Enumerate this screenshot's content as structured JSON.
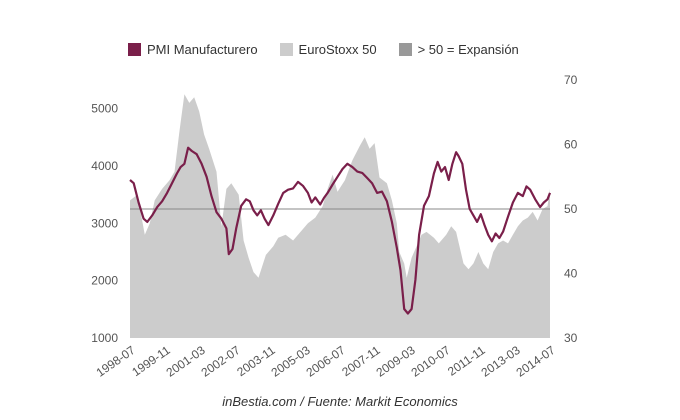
{
  "legend": {
    "pmi_label": "PMI Manufacturero",
    "stoxx_label": "EuroStoxx 50",
    "threshold_label": "> 50 = Expansión"
  },
  "source": "inBestia.com / Fuente: Markit Economics",
  "colors": {
    "pmi": "#7a1f4a",
    "stoxx": "#cccccc",
    "threshold": "#999999",
    "threshold_line": "#888888"
  },
  "chart_data": {
    "type": "area",
    "title": "",
    "legend_position": "top",
    "x_ticks": [
      "1998-07",
      "1999-11",
      "2001-03",
      "2002-07",
      "2003-11",
      "2005-03",
      "2006-07",
      "2007-11",
      "2009-03",
      "2010-07",
      "2011-11",
      "2013-03",
      "2014-07"
    ],
    "x_range": [
      1998.0,
      2015.0
    ],
    "y_left": {
      "label": "",
      "range": [
        1000,
        5500
      ],
      "ticks": [
        1000,
        2000,
        3000,
        4000,
        5000
      ]
    },
    "y_right": {
      "label": "",
      "range": [
        30,
        70
      ],
      "ticks": [
        30,
        40,
        50,
        60,
        70
      ]
    },
    "threshold": 50,
    "series": [
      {
        "name": "EuroStoxx 50",
        "axis": "left",
        "kind": "area",
        "points": [
          [
            1998.0,
            3400
          ],
          [
            1998.3,
            3500
          ],
          [
            1998.6,
            2800
          ],
          [
            1998.8,
            3000
          ],
          [
            1999.0,
            3400
          ],
          [
            1999.3,
            3600
          ],
          [
            1999.6,
            3750
          ],
          [
            1999.8,
            3900
          ],
          [
            2000.0,
            4600
          ],
          [
            2000.2,
            5250
          ],
          [
            2000.4,
            5100
          ],
          [
            2000.6,
            5200
          ],
          [
            2000.8,
            4950
          ],
          [
            2001.0,
            4550
          ],
          [
            2001.2,
            4300
          ],
          [
            2001.5,
            3900
          ],
          [
            2001.7,
            2950
          ],
          [
            2001.9,
            3600
          ],
          [
            2002.1,
            3700
          ],
          [
            2002.4,
            3500
          ],
          [
            2002.6,
            2700
          ],
          [
            2002.8,
            2400
          ],
          [
            2003.0,
            2150
          ],
          [
            2003.2,
            2050
          ],
          [
            2003.5,
            2450
          ],
          [
            2003.8,
            2600
          ],
          [
            2004.0,
            2750
          ],
          [
            2004.3,
            2800
          ],
          [
            2004.6,
            2700
          ],
          [
            2004.9,
            2850
          ],
          [
            2005.2,
            3000
          ],
          [
            2005.5,
            3100
          ],
          [
            2005.8,
            3300
          ],
          [
            2006.0,
            3600
          ],
          [
            2006.2,
            3850
          ],
          [
            2006.4,
            3550
          ],
          [
            2006.7,
            3750
          ],
          [
            2007.0,
            4100
          ],
          [
            2007.3,
            4350
          ],
          [
            2007.5,
            4500
          ],
          [
            2007.7,
            4300
          ],
          [
            2007.9,
            4400
          ],
          [
            2008.1,
            3800
          ],
          [
            2008.4,
            3700
          ],
          [
            2008.6,
            3400
          ],
          [
            2008.8,
            3000
          ],
          [
            2008.9,
            2500
          ],
          [
            2009.1,
            2300
          ],
          [
            2009.2,
            2050
          ],
          [
            2009.4,
            2400
          ],
          [
            2009.6,
            2600
          ],
          [
            2009.8,
            2800
          ],
          [
            2010.0,
            2850
          ],
          [
            2010.3,
            2750
          ],
          [
            2010.5,
            2650
          ],
          [
            2010.8,
            2800
          ],
          [
            2011.0,
            2950
          ],
          [
            2011.2,
            2850
          ],
          [
            2011.5,
            2300
          ],
          [
            2011.7,
            2200
          ],
          [
            2011.9,
            2300
          ],
          [
            2012.1,
            2500
          ],
          [
            2012.3,
            2300
          ],
          [
            2012.5,
            2200
          ],
          [
            2012.7,
            2500
          ],
          [
            2012.9,
            2650
          ],
          [
            2013.1,
            2700
          ],
          [
            2013.3,
            2650
          ],
          [
            2013.5,
            2800
          ],
          [
            2013.7,
            2950
          ],
          [
            2013.9,
            3050
          ],
          [
            2014.1,
            3100
          ],
          [
            2014.3,
            3200
          ],
          [
            2014.5,
            3050
          ],
          [
            2014.7,
            3250
          ],
          [
            2014.9,
            3300
          ],
          [
            2015.0,
            3600
          ]
        ]
      },
      {
        "name": "PMI Manufacturero",
        "axis": "right",
        "kind": "line",
        "points": [
          [
            1998.0,
            54.5
          ],
          [
            1998.15,
            54
          ],
          [
            1998.35,
            51
          ],
          [
            1998.55,
            48.5
          ],
          [
            1998.7,
            48
          ],
          [
            1998.9,
            49
          ],
          [
            1999.1,
            50.3
          ],
          [
            1999.3,
            51.2
          ],
          [
            1999.5,
            52.5
          ],
          [
            1999.7,
            54
          ],
          [
            1999.9,
            55.5
          ],
          [
            2000.05,
            56.5
          ],
          [
            2000.2,
            57
          ],
          [
            2000.35,
            59.5
          ],
          [
            2000.5,
            59
          ],
          [
            2000.7,
            58.5
          ],
          [
            2000.9,
            57
          ],
          [
            2001.1,
            55
          ],
          [
            2001.3,
            52
          ],
          [
            2001.5,
            49.5
          ],
          [
            2001.7,
            48.5
          ],
          [
            2001.9,
            47
          ],
          [
            2002.0,
            43
          ],
          [
            2002.15,
            43.8
          ],
          [
            2002.3,
            47
          ],
          [
            2002.5,
            50.5
          ],
          [
            2002.7,
            51.5
          ],
          [
            2002.85,
            51.2
          ],
          [
            2003.0,
            49.8
          ],
          [
            2003.15,
            49
          ],
          [
            2003.3,
            49.8
          ],
          [
            2003.45,
            48.5
          ],
          [
            2003.6,
            47.5
          ],
          [
            2003.8,
            49
          ],
          [
            2004.0,
            50.8
          ],
          [
            2004.2,
            52.5
          ],
          [
            2004.4,
            53
          ],
          [
            2004.6,
            53.2
          ],
          [
            2004.8,
            54.2
          ],
          [
            2005.0,
            53.6
          ],
          [
            2005.2,
            52.5
          ],
          [
            2005.35,
            51
          ],
          [
            2005.5,
            51.8
          ],
          [
            2005.7,
            50.7
          ],
          [
            2005.85,
            51.7
          ],
          [
            2006.0,
            52.5
          ],
          [
            2006.2,
            53.8
          ],
          [
            2006.4,
            55
          ],
          [
            2006.6,
            56.2
          ],
          [
            2006.8,
            57
          ],
          [
            2007.0,
            56.5
          ],
          [
            2007.2,
            55.8
          ],
          [
            2007.4,
            55.6
          ],
          [
            2007.6,
            54.8
          ],
          [
            2007.8,
            54
          ],
          [
            2008.0,
            52.5
          ],
          [
            2008.2,
            52.7
          ],
          [
            2008.4,
            51.2
          ],
          [
            2008.6,
            48
          ],
          [
            2008.8,
            44
          ],
          [
            2008.95,
            40.5
          ],
          [
            2009.1,
            34.5
          ],
          [
            2009.25,
            33.8
          ],
          [
            2009.4,
            34.5
          ],
          [
            2009.55,
            39
          ],
          [
            2009.7,
            46
          ],
          [
            2009.9,
            50.5
          ],
          [
            2010.1,
            52
          ],
          [
            2010.3,
            55.5
          ],
          [
            2010.45,
            57.3
          ],
          [
            2010.6,
            55.8
          ],
          [
            2010.75,
            56.5
          ],
          [
            2010.9,
            54.5
          ],
          [
            2011.05,
            57
          ],
          [
            2011.2,
            58.8
          ],
          [
            2011.3,
            58.2
          ],
          [
            2011.45,
            57
          ],
          [
            2011.6,
            53
          ],
          [
            2011.75,
            50
          ],
          [
            2011.9,
            49
          ],
          [
            2012.05,
            48
          ],
          [
            2012.2,
            49.2
          ],
          [
            2012.35,
            47.5
          ],
          [
            2012.5,
            46
          ],
          [
            2012.65,
            45
          ],
          [
            2012.8,
            46.2
          ],
          [
            2012.95,
            45.5
          ],
          [
            2013.1,
            46.5
          ],
          [
            2013.3,
            48.8
          ],
          [
            2013.5,
            51
          ],
          [
            2013.7,
            52.5
          ],
          [
            2013.9,
            52
          ],
          [
            2014.05,
            53.5
          ],
          [
            2014.2,
            53
          ],
          [
            2014.4,
            51.5
          ],
          [
            2014.6,
            50.3
          ],
          [
            2014.75,
            51
          ],
          [
            2014.9,
            51.5
          ],
          [
            2015.0,
            52.5
          ]
        ]
      }
    ]
  }
}
